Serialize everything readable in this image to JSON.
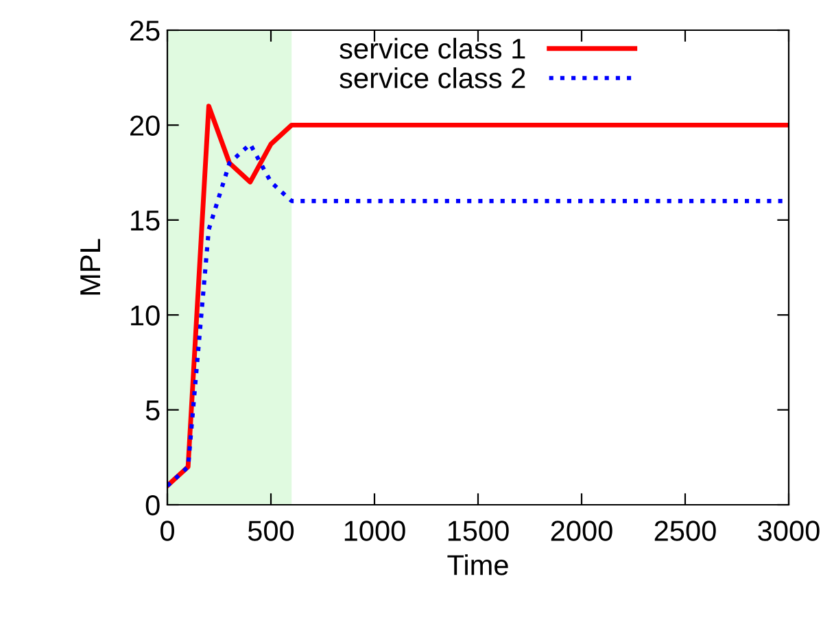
{
  "chart_data": {
    "type": "line",
    "xlabel": "Time",
    "ylabel": "MPL",
    "xlim": [
      0,
      3000
    ],
    "ylim": [
      0,
      25
    ],
    "xticks": [
      0,
      500,
      1000,
      1500,
      2000,
      2500,
      3000
    ],
    "yticks": [
      0,
      5,
      10,
      15,
      20,
      25
    ],
    "grid": false,
    "legend": "top right",
    "bands": [
      {
        "axis": "x",
        "from": 0,
        "to": 600,
        "color": "#e0fae0"
      }
    ],
    "series": [
      {
        "name": "service class 1",
        "color": "#ff0000",
        "line_style": "solid",
        "x": [
          0,
          100,
          200,
          300,
          400,
          500,
          600,
          3000
        ],
        "values": [
          1,
          2,
          21,
          18,
          17,
          19,
          20,
          20
        ]
      },
      {
        "name": "service class 2",
        "color": "#0000ff",
        "line_style": "dotted",
        "x": [
          0,
          100,
          200,
          300,
          400,
          500,
          600,
          3000
        ],
        "values": [
          1,
          2,
          14.5,
          18,
          19,
          17,
          16,
          16
        ]
      }
    ]
  }
}
